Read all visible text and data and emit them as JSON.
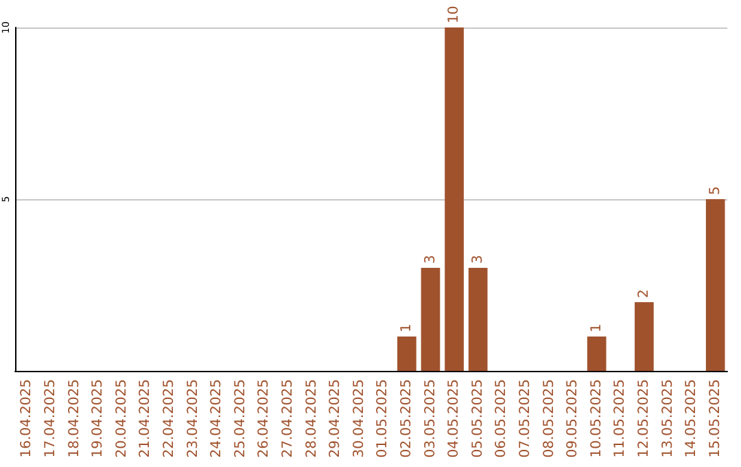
{
  "chart_data": {
    "type": "bar",
    "categories": [
      "16.04.2025",
      "17.04.2025",
      "18.04.2025",
      "19.04.2025",
      "20.04.2025",
      "21.04.2025",
      "22.04.2025",
      "23.04.2025",
      "24.04.2025",
      "25.04.2025",
      "26.04.2025",
      "27.04.2025",
      "28.04.2025",
      "29.04.2025",
      "30.04.2025",
      "01.05.2025",
      "02.05.2025",
      "03.05.2025",
      "04.05.2025",
      "05.05.2025",
      "06.05.2025",
      "07.05.2025",
      "08.05.2025",
      "09.05.2025",
      "10.05.2025",
      "11.05.2025",
      "12.05.2025",
      "13.05.2025",
      "14.05.2025",
      "15.05.2025"
    ],
    "values": [
      0,
      0,
      0,
      0,
      0,
      0,
      0,
      0,
      0,
      0,
      0,
      0,
      0,
      0,
      0,
      0,
      1,
      3,
      10,
      3,
      0,
      0,
      0,
      0,
      1,
      0,
      2,
      0,
      0,
      5
    ],
    "value_labels": [
      null,
      null,
      null,
      null,
      null,
      null,
      null,
      null,
      null,
      null,
      null,
      null,
      null,
      null,
      null,
      null,
      "1",
      "3",
      "10",
      "3",
      null,
      null,
      null,
      null,
      "1",
      null,
      "2",
      null,
      null,
      "5"
    ],
    "color": "#a0522d",
    "ylim": [
      0,
      10
    ],
    "yticks": [
      5,
      10
    ],
    "grid": "y"
  }
}
